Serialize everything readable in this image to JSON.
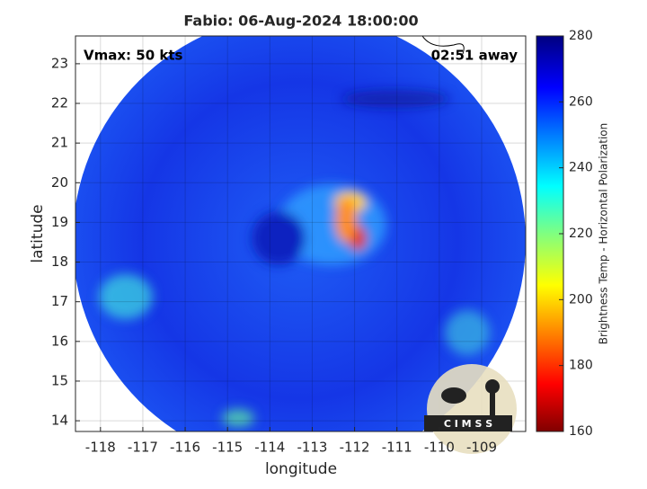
{
  "chart_data": {
    "type": "map",
    "title": "Fabio: 06-Aug-2024 18:00:00",
    "annotations": [
      "Vmax: 50 kts",
      "02:51 away"
    ],
    "xlabel": "longitude",
    "ylabel": "latitude",
    "xlim": [
      -118.59,
      -107.96
    ],
    "ylim": [
      13.73,
      23.7
    ],
    "xticks": [
      -118,
      -117,
      -116,
      -115,
      -114,
      -113,
      -112,
      -111,
      -110,
      -109
    ],
    "yticks": [
      14,
      15,
      16,
      17,
      18,
      19,
      20,
      21,
      22,
      23
    ],
    "grid": true,
    "colorbar": {
      "label": "Brightness Temp - Horizontal Polarization",
      "lim": [
        160,
        280
      ],
      "ticks": [
        160,
        180,
        200,
        220,
        240,
        260,
        280
      ]
    },
    "logo": "C I M S S"
  }
}
